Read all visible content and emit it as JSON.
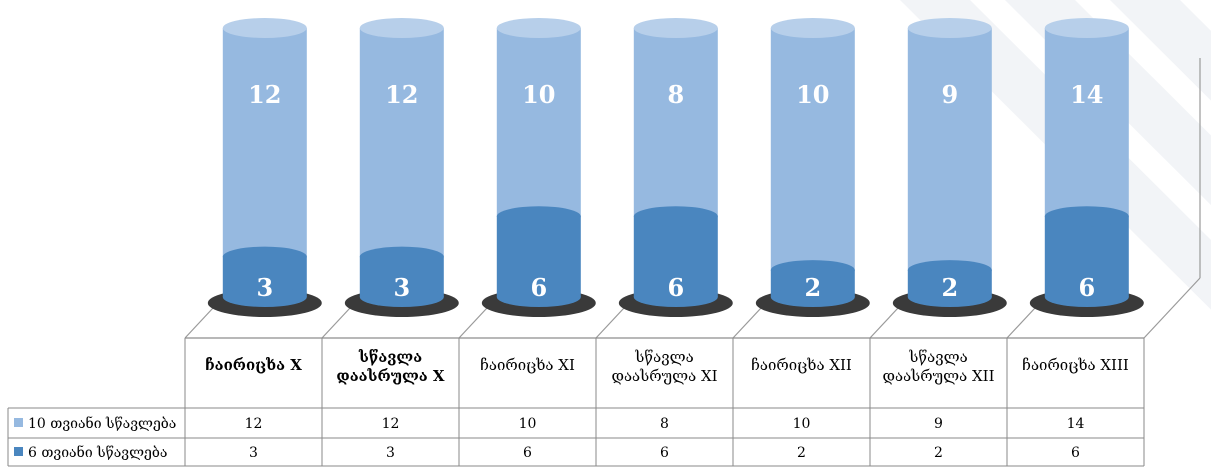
{
  "chart_data": {
    "type": "bar",
    "stacked": true,
    "categories": [
      "ჩაირიცხა X",
      "სწავლა დაასრულა X",
      "ჩაირიცხა XI",
      "სწავლა დაასრულა XI",
      "ჩაირიცხა XII",
      "სწავლა დაასრულა XII",
      "ჩაირიცხა XIII"
    ],
    "series": [
      {
        "name": "10 თვიანი სწავლება",
        "values": [
          12,
          12,
          10,
          8,
          10,
          9,
          14
        ],
        "color": "#96B9E0"
      },
      {
        "name": "6 თვიანი სწავლება",
        "values": [
          3,
          3,
          6,
          6,
          2,
          2,
          6
        ],
        "color": "#4A86BF"
      }
    ],
    "ylim": [
      0,
      20
    ],
    "grid": false,
    "data_table": true,
    "legend": "data-table"
  }
}
